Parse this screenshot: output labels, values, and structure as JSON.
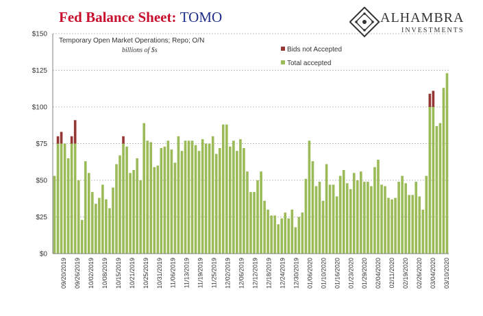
{
  "header": {
    "title_main": "Fed Balance Sheet:",
    "title_sub": "TOMO"
  },
  "logo": {
    "name": "ALHAMBRA",
    "subtitle": "INVESTMENTS"
  },
  "annotations": {
    "line1": "Temporary Open Market Operations; Repo; O/N",
    "line2": "billions of $s"
  },
  "colors": {
    "accepted": "#9bbb59",
    "not_accepted": "#953735",
    "title_red": "#c8102e",
    "title_blue": "#1f2f8a",
    "grid": "#bfbfbf"
  },
  "chart_data": {
    "type": "bar",
    "stacked": true,
    "ylim": [
      0,
      150
    ],
    "yticks": [
      "$0",
      "$25",
      "$50",
      "$75",
      "$100",
      "$125",
      "$150"
    ],
    "ytick_values": [
      0,
      25,
      50,
      75,
      100,
      125,
      150
    ],
    "legend": {
      "placement": "top-right",
      "entries": [
        "Bids not Accepted",
        "Total accepted"
      ]
    },
    "grid": true,
    "x_tick_labels": [
      "09/20/2019",
      "09/26/2019",
      "10/02/2019",
      "10/08/2019",
      "10/15/2019",
      "10/21/2019",
      "10/25/2019",
      "10/31/2019",
      "11/06/2019",
      "11/13/2019",
      "11/19/2019",
      "11/25/2019",
      "12/02/2019",
      "12/06/2019",
      "12/12/2019",
      "12/18/2019",
      "12/24/2019",
      "12/30/2019",
      "01/06/2020",
      "01/10/2020",
      "01/16/2020",
      "01/23/2020",
      "01/29/2020",
      "02/04/2020",
      "02/11/2020",
      "02/19/2020",
      "02/26/2020",
      "03/04/2020",
      "03/10/2020"
    ],
    "series": [
      {
        "name": "Total accepted",
        "values": [
          53,
          75,
          75,
          75,
          65,
          75,
          75,
          50,
          23,
          63,
          55,
          42,
          34,
          38,
          47,
          37,
          31,
          45,
          61,
          67,
          75,
          73,
          55,
          57,
          65,
          50,
          89,
          77,
          76,
          59,
          60,
          72,
          73,
          77,
          71,
          62,
          80,
          70,
          77,
          77,
          77,
          74,
          70,
          78,
          75,
          75,
          80,
          68,
          72,
          88,
          88,
          73,
          77,
          70,
          78,
          72,
          56,
          42,
          42,
          50,
          56,
          36,
          30,
          26,
          26,
          20,
          24,
          28,
          24,
          30,
          18,
          25,
          28,
          51,
          77,
          63,
          46,
          49,
          36,
          61,
          47,
          47,
          39,
          53,
          57,
          48,
          44,
          55,
          50,
          56,
          49,
          49,
          46,
          59,
          64,
          47,
          46,
          38,
          37,
          38,
          49,
          53,
          48,
          40,
          40,
          49,
          39,
          30,
          53,
          100,
          100,
          87,
          89,
          113,
          123
        ]
      },
      {
        "name": "Bids not Accepted",
        "values": [
          0,
          5,
          8,
          0,
          0,
          5,
          16,
          0,
          0,
          0,
          0,
          0,
          0,
          0,
          0,
          0,
          0,
          0,
          0,
          0,
          5,
          0,
          0,
          0,
          0,
          0,
          0,
          0,
          0,
          0,
          0,
          0,
          0,
          0,
          0,
          0,
          0,
          0,
          0,
          0,
          0,
          0,
          0,
          0,
          0,
          0,
          0,
          0,
          0,
          0,
          0,
          0,
          0,
          0,
          0,
          0,
          0,
          0,
          0,
          0,
          0,
          0,
          0,
          0,
          0,
          0,
          0,
          0,
          0,
          0,
          0,
          0,
          0,
          0,
          0,
          0,
          0,
          0,
          0,
          0,
          0,
          0,
          0,
          0,
          0,
          0,
          0,
          0,
          0,
          0,
          0,
          0,
          0,
          0,
          0,
          0,
          0,
          0,
          0,
          0,
          0,
          0,
          0,
          0,
          0,
          0,
          0,
          0,
          0,
          9,
          11,
          0,
          0,
          0,
          0
        ]
      }
    ]
  }
}
